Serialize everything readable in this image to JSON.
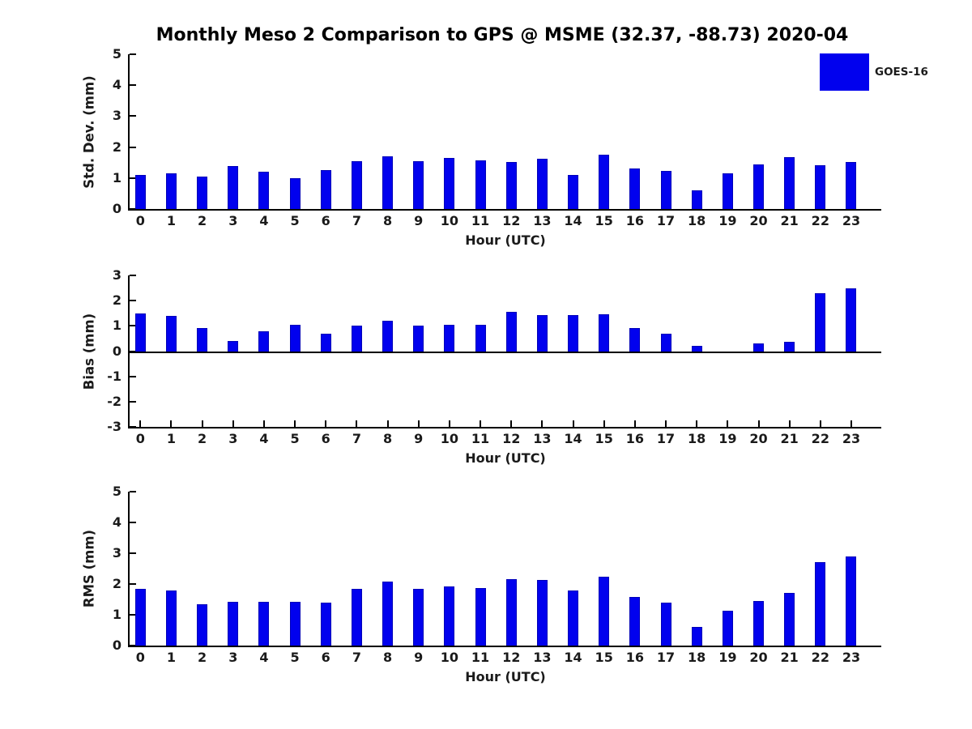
{
  "title": "Monthly Meso 2 Comparison to GPS @ MSME (32.37, -88.73) 2020-04",
  "legend": {
    "label": "GOES-16",
    "color": "#0101ee"
  },
  "chart_data": [
    {
      "type": "bar",
      "name": "std-dev",
      "series_name": "GOES-16",
      "ylabel": "Std. Dev. (mm)",
      "xlabel": "Hour (UTC)",
      "ylim": [
        0,
        5
      ],
      "ytick_step": 1,
      "grid": false,
      "categories": [
        "0",
        "1",
        "2",
        "3",
        "4",
        "5",
        "6",
        "7",
        "8",
        "9",
        "10",
        "11",
        "12",
        "13",
        "14",
        "15",
        "16",
        "17",
        "18",
        "19",
        "20",
        "21",
        "22",
        "23"
      ],
      "values": [
        1.1,
        1.15,
        1.05,
        1.4,
        1.2,
        1.0,
        1.25,
        1.55,
        1.7,
        1.55,
        1.65,
        1.58,
        1.52,
        1.63,
        1.11,
        1.75,
        1.32,
        1.24,
        0.6,
        1.15,
        1.45,
        1.68,
        1.42,
        1.52
      ]
    },
    {
      "type": "bar",
      "name": "bias",
      "series_name": "GOES-16",
      "ylabel": "Bias (mm)",
      "xlabel": "Hour (UTC)",
      "ylim": [
        -3,
        3
      ],
      "ytick_step": 1,
      "grid": false,
      "categories": [
        "0",
        "1",
        "2",
        "3",
        "4",
        "5",
        "6",
        "7",
        "8",
        "9",
        "10",
        "11",
        "12",
        "13",
        "14",
        "15",
        "16",
        "17",
        "18",
        "19",
        "20",
        "21",
        "22",
        "23"
      ],
      "values": [
        1.5,
        1.4,
        0.9,
        0.4,
        0.8,
        1.05,
        0.7,
        1.02,
        1.2,
        1.02,
        1.05,
        1.05,
        1.55,
        1.42,
        1.42,
        1.45,
        0.92,
        0.7,
        0.2,
        0.0,
        0.3,
        0.38,
        2.28,
        2.48
      ]
    },
    {
      "type": "bar",
      "name": "rms",
      "series_name": "GOES-16",
      "ylabel": "RMS (mm)",
      "xlabel": "Hour (UTC)",
      "ylim": [
        0,
        5
      ],
      "ytick_step": 1,
      "grid": false,
      "categories": [
        "0",
        "1",
        "2",
        "3",
        "4",
        "5",
        "6",
        "7",
        "8",
        "9",
        "10",
        "11",
        "12",
        "13",
        "14",
        "15",
        "16",
        "17",
        "18",
        "19",
        "20",
        "21",
        "22",
        "23"
      ],
      "values": [
        1.85,
        1.8,
        1.35,
        1.42,
        1.42,
        1.42,
        1.4,
        1.85,
        2.07,
        1.85,
        1.92,
        1.87,
        2.15,
        2.12,
        1.78,
        2.25,
        1.58,
        1.4,
        0.6,
        1.12,
        1.45,
        1.7,
        2.7,
        2.9
      ]
    }
  ]
}
